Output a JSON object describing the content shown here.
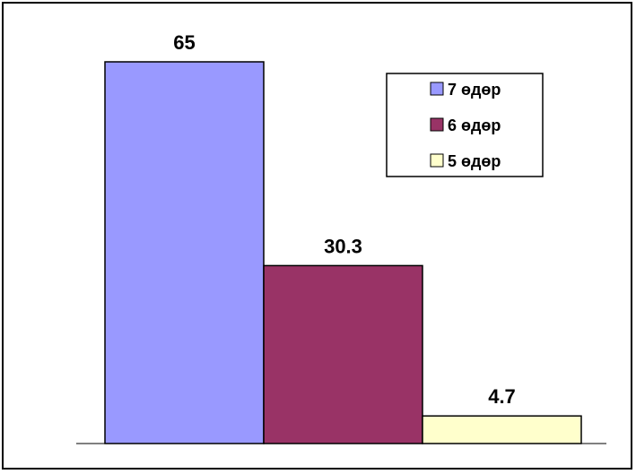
{
  "chart_data": {
    "type": "bar",
    "title": "",
    "xlabel": "",
    "ylabel": "",
    "ylim": [
      0,
      70
    ],
    "grid": false,
    "legend_position": "top-right",
    "series": [
      {
        "name": "7 өдөр",
        "value": 65,
        "label": "65",
        "color": "#9999ff"
      },
      {
        "name": "6 өдөр",
        "value": 30.3,
        "label": "30.3",
        "color": "#993366"
      },
      {
        "name": "5 өдөр",
        "value": 4.7,
        "label": "4.7",
        "color": "#ffffcc"
      }
    ]
  }
}
